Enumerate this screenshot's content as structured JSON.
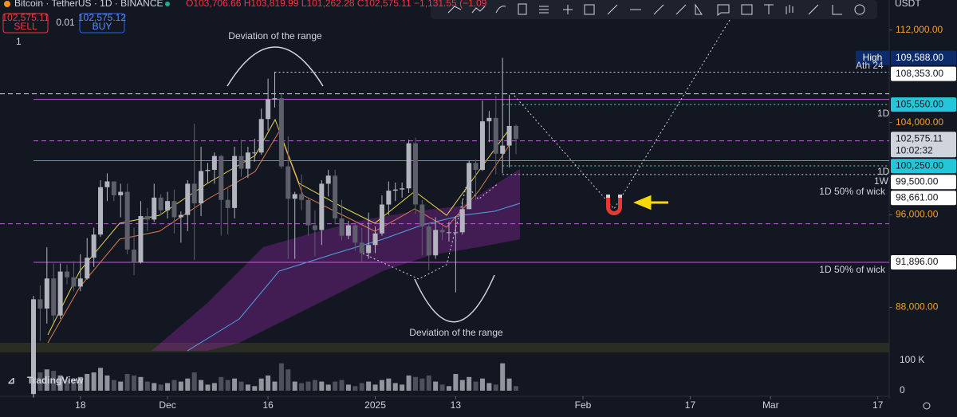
{
  "header": {
    "symbol": "Bitcoin · TetherUS · 1D · BINANCE",
    "ohlc": "O103,706.66 H103,819.99 L101,262.28 C102,575.11 −1,131.55 (−1.09",
    "sell_price": "102,575.11",
    "sell": "SELL",
    "spread": "0.01",
    "buy_price": "102,575.12",
    "buy": "BUY",
    "count": "1",
    "currency": "USDT",
    "logo": "TradingView"
  },
  "chart_data": {
    "type": "candlestick",
    "x": [
      0,
      1,
      2,
      3,
      4,
      5,
      6,
      7,
      8,
      9,
      10,
      11,
      12,
      13,
      14,
      15,
      16,
      17,
      18,
      19,
      20,
      21,
      22,
      23,
      24,
      25,
      26,
      27,
      28,
      29,
      30,
      31,
      32,
      33,
      34,
      35,
      36,
      37,
      38,
      39,
      40,
      41,
      42,
      43,
      44,
      45,
      46,
      47,
      48,
      49,
      50,
      51,
      52,
      53,
      54,
      55,
      56,
      57,
      58,
      59,
      60,
      61,
      62,
      63,
      64,
      65,
      66,
      67,
      68,
      69,
      70,
      71,
      72
    ],
    "open": [
      80500,
      88700,
      87900,
      90500,
      87300,
      91100,
      90600,
      89800,
      90500,
      92300,
      94300,
      98400,
      98900,
      97700,
      98000,
      93000,
      91900,
      95900,
      95600,
      97500,
      96400,
      97200,
      95800,
      96000,
      98700,
      97000,
      99800,
      99900,
      101100,
      97300,
      96600,
      101100,
      100000,
      101400,
      101400,
      104300,
      106000,
      106100,
      100200,
      97400,
      97800,
      97300,
      95100,
      94700,
      98700,
      99400,
      95700,
      94200,
      95100,
      93600,
      92700,
      93400,
      94400,
      96900,
      98100,
      98200,
      98300,
      102200,
      96900,
      95000,
      92500,
      94700,
      94500,
      94500,
      94500,
      96500,
      100500,
      99900,
      104100,
      104400,
      101300,
      102000,
      103706.66
    ],
    "high": [
      89000,
      89900,
      93200,
      91800,
      91800,
      91700,
      92000,
      92600,
      94000,
      94900,
      99000,
      99600,
      98900,
      98700,
      98700,
      94900,
      97200,
      96600,
      98700,
      97800,
      98000,
      98200,
      96300,
      99000,
      103900,
      101900,
      100500,
      101400,
      101200,
      98300,
      101900,
      102500,
      101900,
      102600,
      105200,
      107800,
      108400,
      106500,
      102800,
      98000,
      99500,
      97400,
      96400,
      99000,
      99900,
      99900,
      97300,
      95500,
      95200,
      94900,
      96200,
      95000,
      97700,
      98900,
      98800,
      98800,
      102500,
      102700,
      97300,
      95300,
      95800,
      95000,
      95400,
      95900,
      97300,
      100700,
      100800,
      105900,
      105000,
      106300,
      109600,
      106400,
      103819.99
    ],
    "low": [
      80200,
      85100,
      86600,
      86700,
      87000,
      90000,
      89400,
      89400,
      90400,
      91500,
      94100,
      97200,
      97200,
      95800,
      92600,
      90800,
      91800,
      94600,
      95400,
      96000,
      95700,
      94400,
      93600,
      94600,
      92100,
      95900,
      98800,
      98700,
      94200,
      94300,
      95700,
      99300,
      99200,
      100600,
      101200,
      103300,
      105300,
      100000,
      92200,
      92200,
      96400,
      94200,
      92400,
      93400,
      97600,
      95200,
      93800,
      93900,
      92900,
      91900,
      92200,
      92700,
      94200,
      96000,
      97200,
      97500,
      97900,
      96100,
      92500,
      91200,
      92200,
      93800,
      93700,
      89300,
      94300,
      96500,
      97300,
      99800,
      102300,
      99500,
      99600,
      100100,
      101262.28
    ],
    "close": [
      88700,
      87900,
      90500,
      87300,
      91100,
      90600,
      89800,
      90500,
      92300,
      94300,
      98400,
      98900,
      97700,
      98000,
      93000,
      91900,
      95900,
      95600,
      97500,
      96400,
      97200,
      95800,
      96000,
      98700,
      97000,
      99800,
      99900,
      101100,
      97300,
      96600,
      101100,
      100000,
      101400,
      101400,
      104300,
      106000,
      106100,
      100200,
      97400,
      97800,
      97300,
      95100,
      94700,
      98700,
      99400,
      95700,
      94200,
      95100,
      93600,
      92700,
      93400,
      94400,
      96900,
      98100,
      98200,
      98300,
      102200,
      96900,
      95000,
      92500,
      94700,
      94500,
      94500,
      94500,
      96500,
      100500,
      99900,
      104100,
      104400,
      101300,
      102000,
      103700,
      102575.11
    ],
    "up_color": "#b2b5be",
    "down_color": "#5d606b",
    "xlim": [
      -5,
      127.7
    ],
    "xticks": [
      {
        "value": 7,
        "label": "18"
      },
      {
        "value": 20,
        "label": "Dec"
      },
      {
        "value": 35,
        "label": "16"
      },
      {
        "value": 51,
        "label": "2025"
      },
      {
        "value": 63,
        "label": "13"
      },
      {
        "value": 82,
        "label": "Feb"
      },
      {
        "value": 98,
        "label": "17"
      },
      {
        "value": 110,
        "label": "Mar"
      },
      {
        "value": 126,
        "label": "17"
      }
    ],
    "ylim": [
      80100,
      114600
    ],
    "yticks": [
      {
        "value": 112000,
        "label": "112,000.00"
      },
      {
        "value": 104000,
        "label": "104,000.00"
      },
      {
        "value": 96000,
        "label": "96,000.00"
      },
      {
        "value": 88000,
        "label": "88,000.00"
      }
    ],
    "volume": {
      "values": [
        120000,
        60000,
        70000,
        65000,
        50000,
        35000,
        40000,
        45000,
        55000,
        60000,
        75000,
        50000,
        35000,
        30000,
        55000,
        50000,
        45000,
        30000,
        25000,
        20000,
        25000,
        35000,
        30000,
        40000,
        60000,
        35000,
        20000,
        25000,
        45000,
        35000,
        40000,
        30000,
        20000,
        15000,
        40000,
        50000,
        30000,
        90000,
        70000,
        30000,
        25000,
        30000,
        35000,
        30000,
        20000,
        30000,
        35000,
        20000,
        15000,
        25000,
        30000,
        20000,
        35000,
        40000,
        25000,
        20000,
        50000,
        45000,
        40000,
        50000,
        30000,
        20000,
        15000,
        55000,
        35000,
        45000,
        30000,
        40000,
        25000,
        20000,
        90000,
        40000,
        15000
      ],
      "ylim": [
        0,
        131000
      ],
      "yticks": [
        {
          "value": 100000,
          "label": "100 K"
        },
        0
      ]
    }
  },
  "levels": [
    {
      "value": 106000,
      "color": "#c05ad8",
      "style": "solid",
      "start": 0
    },
    {
      "value": 100700,
      "color": "#c05ad8",
      "style": "solid",
      "start": 0
    },
    {
      "value": 91896,
      "color": "#c05ad8",
      "style": "solid",
      "start": 0
    },
    {
      "value": 102414,
      "color": "#c05ad8",
      "style": "dashed",
      "start": 0
    },
    {
      "value": 95240,
      "color": "#c05ad8",
      "style": "dashed",
      "start": -5
    },
    {
      "value": 106480,
      "color": "#d1d4dc",
      "style": "dashed",
      "start": -5
    },
    {
      "value": 108353,
      "color": "#d1d4dc",
      "style": "dotted",
      "start": 36
    },
    {
      "value": 105550,
      "color": "#4dd0e1",
      "style": "dotted",
      "start": 70
    },
    {
      "value": 100250,
      "color": "#4dd0e1",
      "style": "dotted",
      "start": 70
    },
    {
      "value": 99500,
      "color": "#d1d4dc",
      "style": "dotted",
      "start": 70
    }
  ],
  "price_labels": [
    {
      "value": 109588,
      "label": "109,588.00",
      "tag": "High",
      "bg": "#0d2b6b",
      "fg": "#ffffff"
    },
    {
      "value": 108353,
      "label": "108,353.00",
      "bg": "#ffffff",
      "fg": "#131722"
    },
    {
      "value": 105550,
      "label": "105,550.00",
      "bg": "#26c6da",
      "fg": "#131722"
    },
    {
      "value": 102575.11,
      "label": "102,575.11",
      "sub": "10:02:32",
      "bg": "#d1d4dc",
      "fg": "#131722"
    },
    {
      "value": 100250,
      "label": "100,250.00",
      "bg": "#26c6da",
      "fg": "#131722"
    },
    {
      "value": 99500,
      "label": "99,500.00",
      "bg": "#ffffff",
      "fg": "#131722"
    },
    {
      "value": 98661,
      "label": "98,661.00",
      "bg": "#ffffff",
      "fg": "#131722"
    },
    {
      "value": 91896,
      "label": "91,896.00",
      "bg": "#ffffff",
      "fg": "#131722"
    }
  ],
  "annotations": [
    "Deviation of the range",
    "Deviation of the range",
    "Ath 24",
    "1D",
    "1D",
    "1W",
    "1D 50% of wick",
    "1D 50% of wick"
  ]
}
